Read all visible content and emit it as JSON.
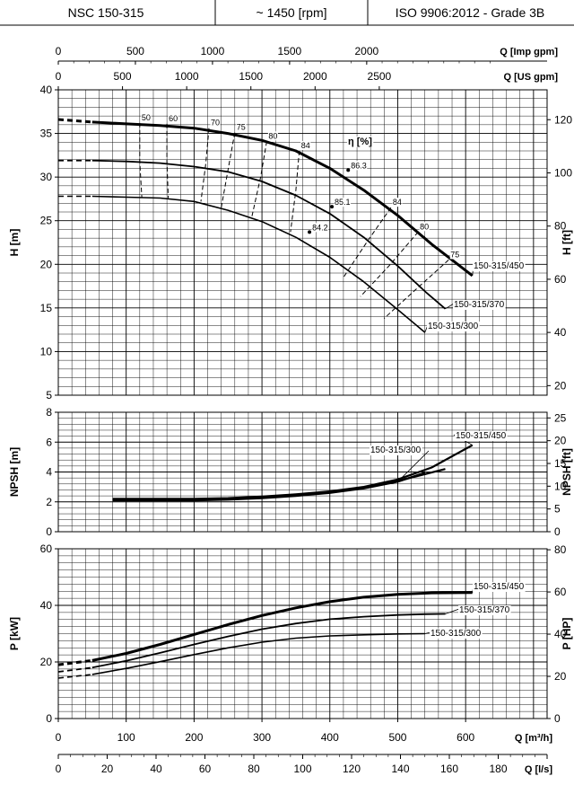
{
  "header": {
    "model": "NSC 150-315",
    "speed": "~ 1450 [rpm]",
    "standard": "ISO 9906:2012 - Grade 3B"
  },
  "chart_data": [
    {
      "type": "line",
      "name_key": "head",
      "ylabel_left": "H [m]",
      "ylabel_right": "H [ft]",
      "ylim": [
        5,
        40
      ],
      "yticks_left": [
        5,
        10,
        15,
        20,
        25,
        30,
        35,
        40
      ],
      "yticks_right": [
        20,
        40,
        60,
        80,
        100,
        120
      ],
      "top_axis_imp": {
        "label": "Q [Imp gpm]",
        "ticks": [
          0,
          500,
          1000,
          1500,
          2000
        ]
      },
      "top_axis_us": {
        "label": "Q [US gpm]",
        "ticks": [
          0,
          500,
          1000,
          1500,
          2000,
          2500
        ]
      },
      "series": [
        {
          "name": "150-315/450",
          "x": [
            0,
            50,
            100,
            150,
            200,
            250,
            300,
            350,
            400,
            450,
            500,
            550,
            610
          ],
          "y": [
            36.6,
            36.3,
            36.1,
            35.9,
            35.6,
            35.0,
            34.2,
            33.0,
            31.0,
            28.5,
            25.6,
            22.3,
            18.7
          ],
          "dashed_upto": 50
        },
        {
          "name": "150-315/370",
          "x": [
            0,
            50,
            100,
            150,
            200,
            250,
            300,
            350,
            400,
            450,
            500,
            540,
            570
          ],
          "y": [
            31.9,
            31.9,
            31.8,
            31.6,
            31.2,
            30.6,
            29.5,
            27.9,
            25.8,
            23.1,
            19.8,
            16.9,
            14.9
          ],
          "dashed_upto": 50
        },
        {
          "name": "150-315/300",
          "x": [
            0,
            50,
            100,
            150,
            200,
            250,
            300,
            350,
            400,
            450,
            500,
            540
          ],
          "y": [
            27.8,
            27.8,
            27.7,
            27.6,
            27.2,
            26.2,
            24.9,
            23.1,
            20.8,
            18.0,
            14.8,
            12.2
          ],
          "dashed_upto": 50
        }
      ],
      "efficiency_label": "η [%]",
      "efficiency_lines": [
        {
          "label": "50",
          "x": [
            120,
            120,
            123
          ],
          "y": [
            36.2,
            31.8,
            27.7
          ]
        },
        {
          "label": "60",
          "x": [
            160,
            160,
            162
          ],
          "y": [
            36.1,
            31.8,
            27.6
          ]
        },
        {
          "label": "70",
          "x": [
            222,
            217,
            210
          ],
          "y": [
            35.6,
            31.4,
            27.2
          ]
        },
        {
          "label": "75",
          "x": [
            260,
            250,
            240
          ],
          "y": [
            35.1,
            30.8,
            26.5
          ]
        },
        {
          "label": "80",
          "x": [
            307,
            298,
            285
          ],
          "y": [
            34.1,
            30.0,
            25.4
          ]
        },
        {
          "label": "84",
          "x": [
            355,
            350,
            342
          ],
          "y": [
            33.0,
            28.5,
            23.7
          ]
        },
        {
          "label": "84",
          "x": [
            490,
            455,
            420
          ],
          "y": [
            26.5,
            22.6,
            18.5
          ]
        },
        {
          "label": "80",
          "x": [
            530,
            488,
            445
          ],
          "y": [
            23.7,
            19.9,
            16.3
          ]
        },
        {
          "label": "75",
          "x": [
            575,
            525,
            480
          ],
          "y": [
            20.5,
            17.0,
            13.8
          ]
        }
      ],
      "efficiency_points": [
        {
          "label": "86.3",
          "x": 427,
          "y": 30.8
        },
        {
          "label": "85.1",
          "x": 403,
          "y": 26.6
        },
        {
          "label": "84.2",
          "x": 370,
          "y": 23.7
        }
      ]
    },
    {
      "type": "line",
      "name_key": "npsh",
      "ylabel_left": "NPSH [m]",
      "ylabel_right": "NPSH [ft]",
      "ylim": [
        0,
        8
      ],
      "yticks_left": [
        0,
        2,
        4,
        6,
        8
      ],
      "yticks_right": [
        0,
        5,
        10,
        15,
        20,
        25
      ],
      "series": [
        {
          "name": "150-315/450",
          "x": [
            80,
            150,
            200,
            250,
            300,
            350,
            400,
            450,
            500,
            550,
            610
          ],
          "y": [
            2.2,
            2.2,
            2.2,
            2.25,
            2.35,
            2.5,
            2.7,
            3.0,
            3.5,
            4.3,
            5.8
          ]
        },
        {
          "name": "150-315/370",
          "x": [
            80,
            150,
            200,
            250,
            300,
            350,
            400,
            450,
            500,
            570
          ],
          "y": [
            2.15,
            2.15,
            2.15,
            2.2,
            2.3,
            2.45,
            2.65,
            2.95,
            3.4,
            4.2
          ]
        },
        {
          "name": "150-315/300",
          "x": [
            80,
            150,
            200,
            250,
            300,
            350,
            400,
            450,
            500,
            540
          ],
          "y": [
            2.1,
            2.1,
            2.1,
            2.15,
            2.25,
            2.4,
            2.6,
            2.9,
            3.35,
            3.95
          ]
        }
      ]
    },
    {
      "type": "line",
      "name_key": "power",
      "ylabel_left": "P [kW]",
      "ylabel_right": "P [HP]",
      "ylim": [
        0,
        60
      ],
      "yticks_left": [
        0,
        20,
        40,
        60
      ],
      "yticks_right": [
        0,
        20,
        40,
        60,
        80
      ],
      "xlabel": "Q [m³/h]",
      "xlim": [
        0,
        720
      ],
      "xticks": [
        0,
        100,
        200,
        300,
        400,
        500,
        600
      ],
      "xlabel_ls": "Q [l/s]",
      "xticks_ls": [
        0,
        20,
        40,
        60,
        80,
        100,
        120,
        140,
        160,
        180
      ],
      "series": [
        {
          "name": "150-315/450",
          "x": [
            0,
            50,
            100,
            150,
            200,
            250,
            300,
            350,
            400,
            450,
            500,
            550,
            610
          ],
          "y": [
            19.0,
            20.5,
            23.0,
            26.2,
            29.7,
            33.2,
            36.4,
            39.1,
            41.3,
            42.9,
            43.9,
            44.4,
            44.5
          ],
          "dashed_upto": 50
        },
        {
          "name": "150-315/370",
          "x": [
            0,
            50,
            100,
            150,
            200,
            250,
            300,
            350,
            400,
            450,
            500,
            540,
            570
          ],
          "y": [
            16.5,
            18.0,
            20.4,
            23.2,
            26.2,
            29.0,
            31.6,
            33.6,
            35.1,
            36.0,
            36.6,
            36.9,
            37.0
          ],
          "dashed_upto": 50
        },
        {
          "name": "150-315/300",
          "x": [
            0,
            50,
            100,
            150,
            200,
            250,
            300,
            350,
            400,
            450,
            500,
            540
          ],
          "y": [
            14.3,
            15.6,
            17.7,
            20.1,
            22.6,
            25.0,
            27.0,
            28.4,
            29.2,
            29.6,
            29.9,
            30.0
          ],
          "dashed_upto": 50
        }
      ]
    }
  ]
}
